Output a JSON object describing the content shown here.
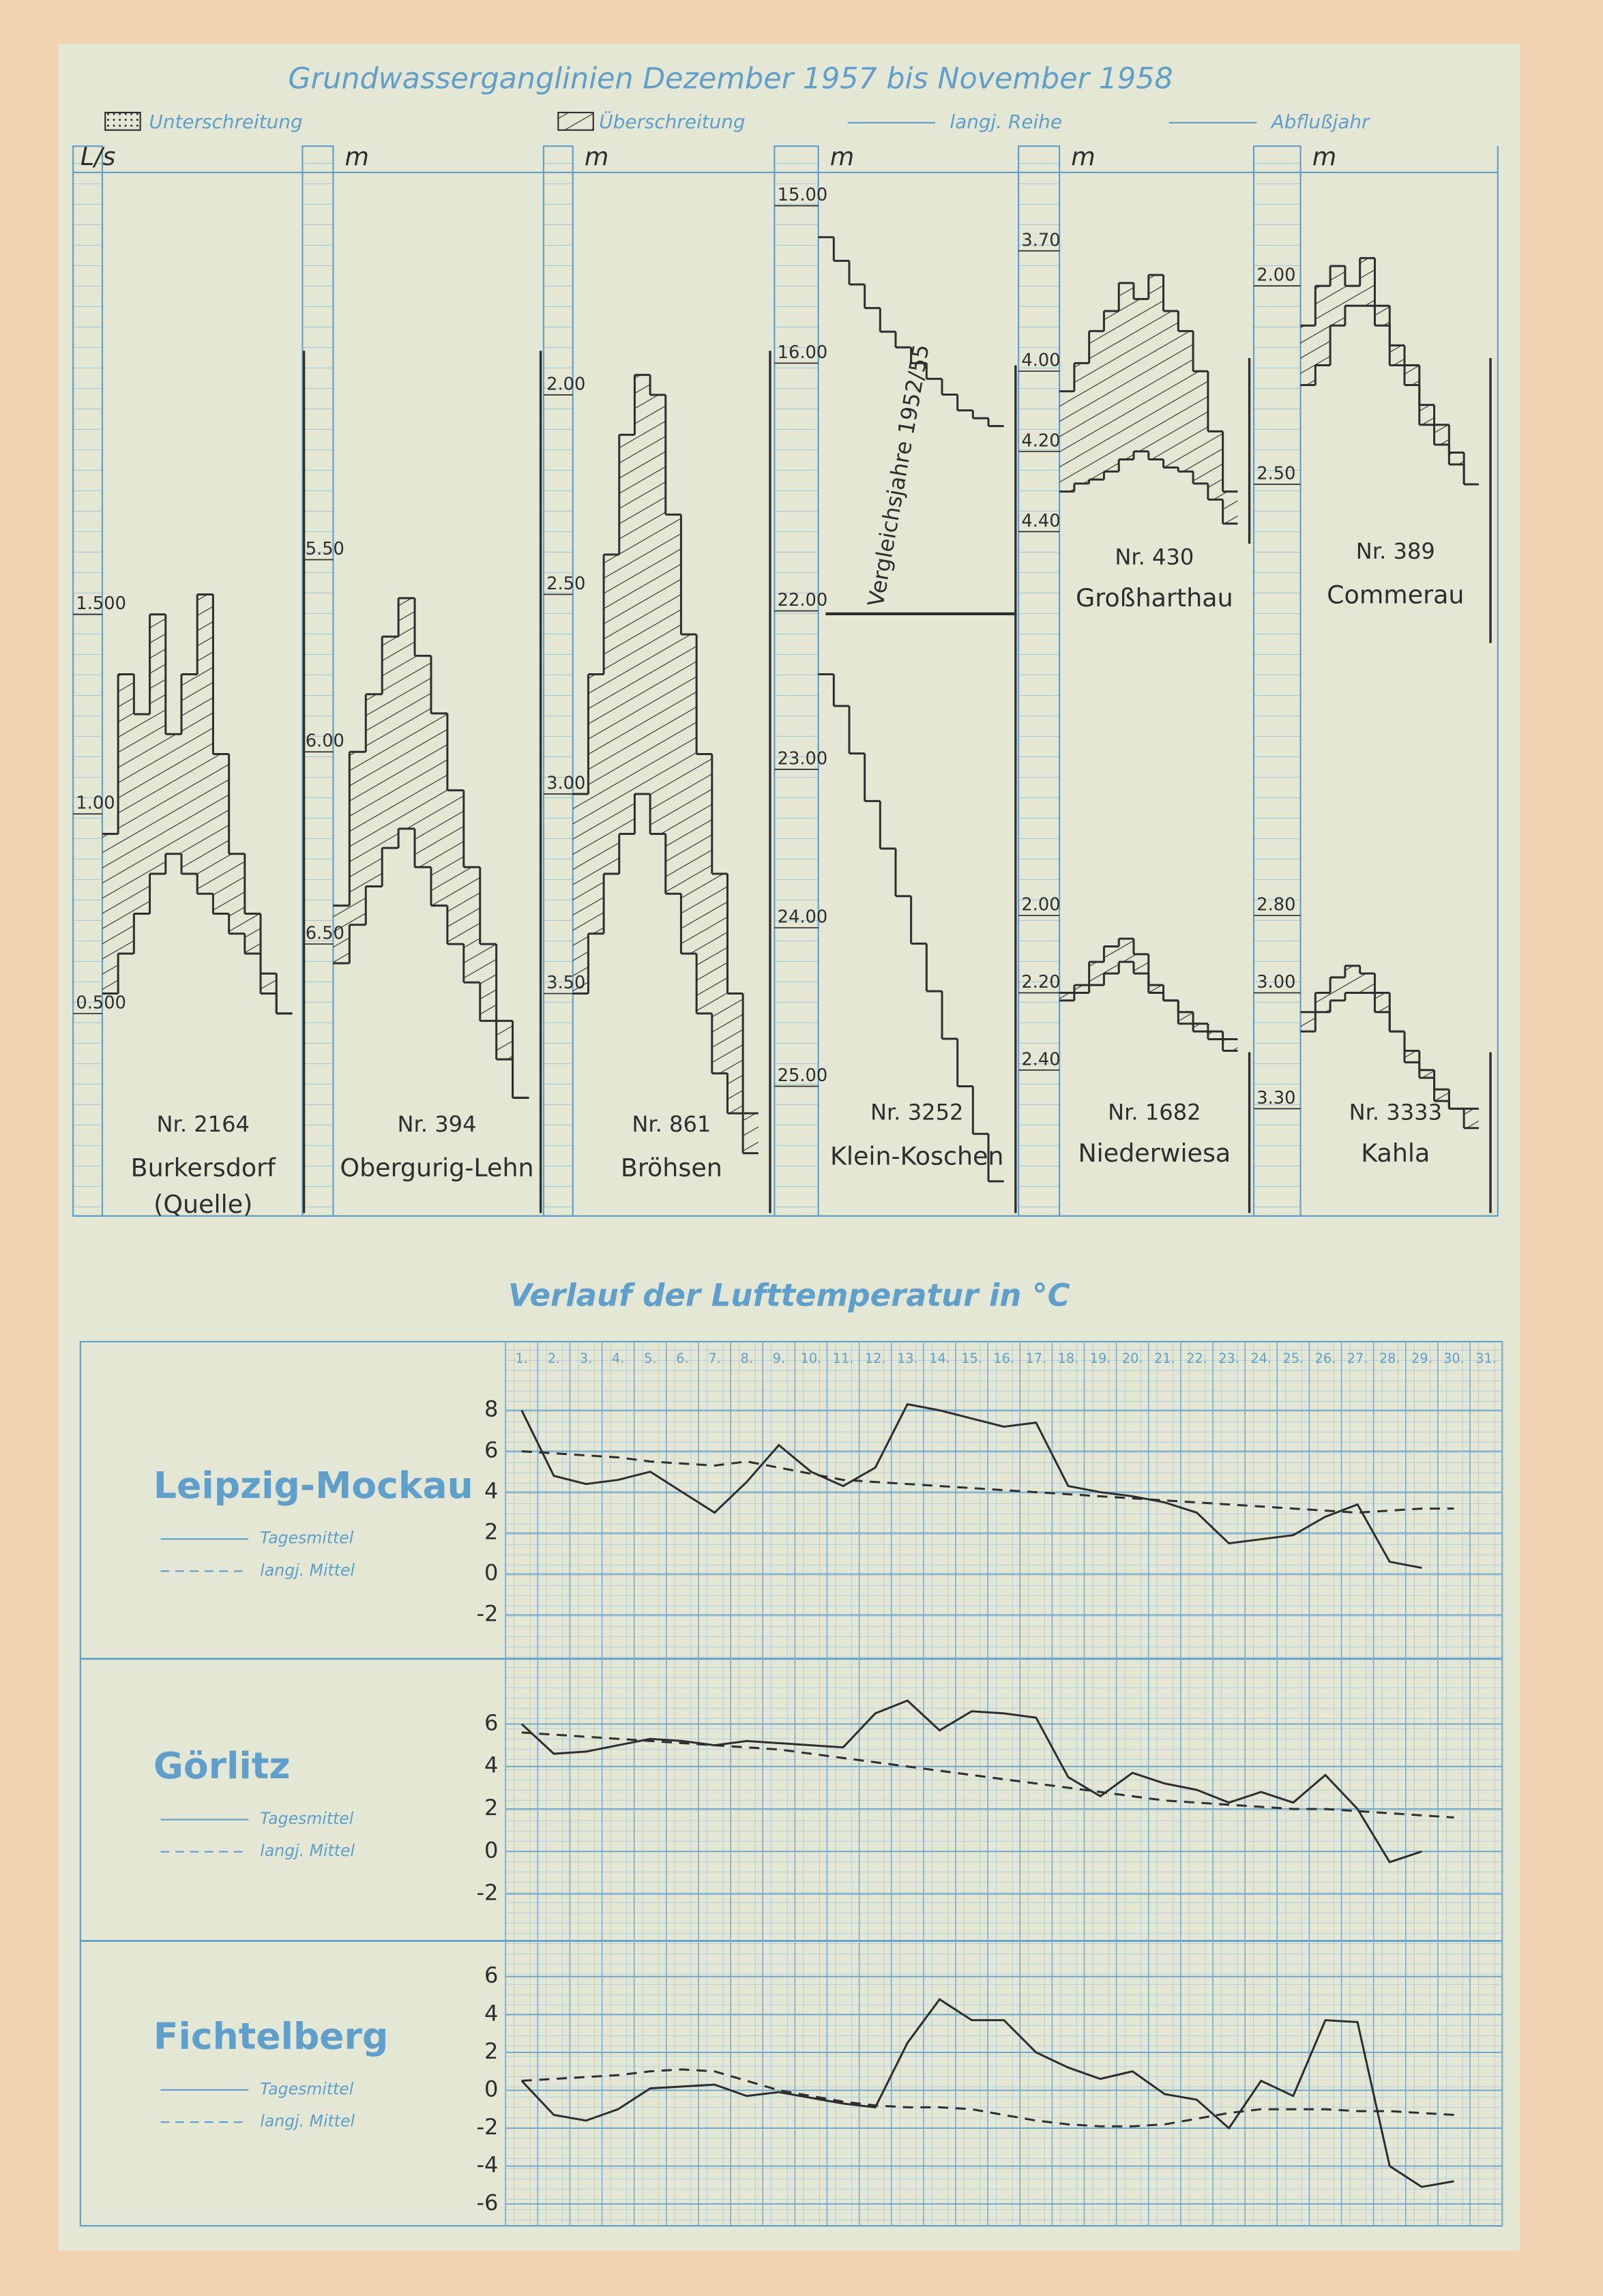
{
  "header": {
    "title": "Grundwasserganglinien Dezember 1957 bis November 1958",
    "legend": [
      "Unterschreitung",
      "Überschreitung",
      "langj. Reihe",
      "Abflußjahr"
    ]
  },
  "section_title": "Verlauf der Lufttemperatur in °C",
  "chart_data": [
    {
      "type": "step",
      "number": "Nr. 2164",
      "name": "Burkersdorf",
      "subtitle": "(Quelle)",
      "unit": "L/s",
      "inverted": false,
      "axes": [
        {
          "ylim": [
            0,
            2.6
          ],
          "yticks": [
            {
              "value": 0.5,
              "label": "0.500"
            },
            {
              "value": 1.0,
              "label": "1.00"
            },
            {
              "value": 1.5,
              "label": "1.500"
            }
          ],
          "series": [
            {
              "name": "Abflußjahr",
              "values": [
                0.95,
                1.35,
                1.25,
                1.5,
                1.2,
                1.35,
                1.55,
                1.15,
                0.9,
                0.75,
                0.6,
                0.5
              ]
            },
            {
              "name": "langj. Reihe",
              "values": [
                0.55,
                0.65,
                0.75,
                0.85,
                0.9,
                0.85,
                0.8,
                0.75,
                0.7,
                0.65,
                0.55,
                0.5
              ]
            }
          ]
        }
      ]
    },
    {
      "type": "step",
      "number": "Nr. 394",
      "name": "Obergurig-Lehn",
      "unit": "m",
      "inverted": true,
      "axes": [
        {
          "ylim": [
            4.5,
            7.2
          ],
          "yticks": [
            {
              "value": 5.5,
              "label": "5.50"
            },
            {
              "value": 6.0,
              "label": "6.00"
            },
            {
              "value": 6.5,
              "label": "6.50"
            }
          ],
          "series": [
            {
              "name": "Abflußjahr",
              "values": [
                6.4,
                6.0,
                5.85,
                5.7,
                5.6,
                5.75,
                5.9,
                6.1,
                6.3,
                6.5,
                6.7,
                6.9
              ]
            },
            {
              "name": "langj. Reihe",
              "values": [
                6.55,
                6.45,
                6.35,
                6.25,
                6.2,
                6.3,
                6.4,
                6.5,
                6.6,
                6.7,
                6.8,
                6.9
              ]
            }
          ]
        }
      ]
    },
    {
      "type": "step",
      "number": "Nr. 861",
      "name": "Bröhsen",
      "unit": "m",
      "inverted": true,
      "axes": [
        {
          "ylim": [
            1.45,
            4.05
          ],
          "yticks": [
            {
              "value": 2.0,
              "label": "2.00"
            },
            {
              "value": 2.5,
              "label": "2.50"
            },
            {
              "value": 3.0,
              "label": "3.00"
            },
            {
              "value": 3.5,
              "label": "3.50"
            }
          ],
          "series": [
            {
              "name": "Abflußjahr",
              "values": [
                3.0,
                2.7,
                2.4,
                2.1,
                1.95,
                2.0,
                2.3,
                2.6,
                2.9,
                3.2,
                3.5,
                3.8
              ]
            },
            {
              "name": "langj. Reihe",
              "values": [
                3.5,
                3.35,
                3.2,
                3.1,
                3.0,
                3.1,
                3.25,
                3.4,
                3.55,
                3.7,
                3.8,
                3.9
              ]
            }
          ]
        }
      ]
    },
    {
      "type": "step",
      "number": "Nr. 3252",
      "name": "Klein-Koschen",
      "note": "Vergleichsjahre 1952/55",
      "unit": "m",
      "inverted": true,
      "axes": [
        {
          "ylim": [
            14.9,
            17.5
          ],
          "yticks": [
            {
              "value": 15,
              "label": "15.00"
            },
            {
              "value": 16,
              "label": "16.00"
            }
          ],
          "series": [
            {
              "name": "langj. Reihe",
              "values": [
                15.2,
                15.35,
                15.5,
                15.65,
                15.8,
                15.9,
                16.0,
                16.1,
                16.2,
                16.3,
                16.35,
                16.4
              ]
            }
          ]
        },
        {
          "ylim": [
            22.0,
            25.8
          ],
          "yticks": [
            {
              "value": 22,
              "label": "22.00"
            },
            {
              "value": 23,
              "label": "23.00"
            },
            {
              "value": 24,
              "label": "24.00"
            },
            {
              "value": 25,
              "label": "25.00"
            }
          ],
          "series": [
            {
              "name": "Abflußjahr",
              "values": [
                22.4,
                22.6,
                22.9,
                23.2,
                23.5,
                23.8,
                24.1,
                24.4,
                24.7,
                25.0,
                25.3,
                25.6
              ]
            }
          ]
        }
      ]
    },
    {
      "type": "step",
      "number": "Nr. 430",
      "name": "Großharthau",
      "unit": "m",
      "inverted": true,
      "axes": [
        {
          "ylim": [
            3.53,
            4.43
          ],
          "yticks": [
            {
              "value": 3.7,
              "label": "3.70"
            },
            {
              "value": 4.0,
              "label": "4.00"
            },
            {
              "value": 4.2,
              "label": "4.20"
            },
            {
              "value": 4.4,
              "label": "4.40"
            }
          ],
          "series": [
            {
              "name": "Abflußjahr",
              "values": [
                4.05,
                3.98,
                3.9,
                3.85,
                3.78,
                3.82,
                3.76,
                3.85,
                3.9,
                4.0,
                4.15,
                4.3
              ]
            },
            {
              "name": "langj. Reihe",
              "values": [
                4.3,
                4.28,
                4.27,
                4.25,
                4.22,
                4.2,
                4.22,
                4.24,
                4.25,
                4.28,
                4.32,
                4.38
              ]
            }
          ]
        }
      ]
    },
    {
      "type": "step",
      "number": "Nr. 1682",
      "name": "Niederwiesa",
      "inverted": true,
      "axes": [
        {
          "ylim": [
            1.9,
            2.77
          ],
          "yticks": [
            {
              "value": 2.0,
              "label": "2.00"
            },
            {
              "value": 2.2,
              "label": "2.20"
            },
            {
              "value": 2.4,
              "label": "2.40"
            }
          ],
          "series": [
            {
              "name": "Abflußjahr",
              "values": [
                2.22,
                2.18,
                2.12,
                2.08,
                2.06,
                2.1,
                2.2,
                2.22,
                2.28,
                2.3,
                2.32,
                2.35
              ]
            },
            {
              "name": "langj. Reihe",
              "values": [
                2.2,
                2.2,
                2.18,
                2.15,
                2.12,
                2.15,
                2.18,
                2.22,
                2.25,
                2.28,
                2.3,
                2.32
              ]
            }
          ]
        }
      ]
    },
    {
      "type": "step",
      "number": "Nr. 389",
      "name": "Commerau",
      "unit": "m",
      "inverted": true,
      "axes": [
        {
          "ylim": [
            1.74,
            2.9
          ],
          "yticks": [
            {
              "value": 2.0,
              "label": "2.00"
            },
            {
              "value": 2.5,
              "label": "2.50"
            }
          ],
          "series": [
            {
              "name": "Abflußjahr",
              "values": [
                2.1,
                2.0,
                1.95,
                2.0,
                1.93,
                2.05,
                2.15,
                2.2,
                2.35,
                2.4,
                2.45,
                2.5
              ]
            },
            {
              "name": "langj. Reihe",
              "values": [
                2.25,
                2.2,
                2.1,
                2.05,
                2.05,
                2.1,
                2.2,
                2.25,
                2.3,
                2.35,
                2.42,
                2.5
              ]
            }
          ]
        }
      ]
    },
    {
      "type": "step",
      "number": "Nr. 3333",
      "name": "Kahla",
      "inverted": true,
      "axes": [
        {
          "ylim": [
            2.7,
            3.57
          ],
          "yticks": [
            {
              "value": 2.8,
              "label": "2.80"
            },
            {
              "value": 3.0,
              "label": "3.00"
            },
            {
              "value": 3.3,
              "label": "3.30"
            }
          ],
          "series": [
            {
              "name": "Abflußjahr",
              "values": [
                3.1,
                3.0,
                2.96,
                2.93,
                2.95,
                3.0,
                3.1,
                3.15,
                3.2,
                3.25,
                3.3,
                3.3
              ]
            },
            {
              "name": "langj. Reihe",
              "values": [
                3.05,
                3.05,
                3.02,
                3.0,
                3.0,
                3.05,
                3.1,
                3.18,
                3.22,
                3.28,
                3.3,
                3.35
              ]
            }
          ]
        }
      ]
    },
    {
      "type": "line",
      "name": "Leipzig-Mockau",
      "categories": [
        "1.",
        "2.",
        "3.",
        "4.",
        "5.",
        "6.",
        "7.",
        "8.",
        "9.",
        "10.",
        "11.",
        "12.",
        "13.",
        "14.",
        "15.",
        "16.",
        "17.",
        "18.",
        "19.",
        "20.",
        "21.",
        "22.",
        "23.",
        "24.",
        "25.",
        "26.",
        "27.",
        "28.",
        "29.",
        "30.",
        "31."
      ],
      "ylim": [
        -4,
        10
      ],
      "yticks": [
        -2,
        0,
        2,
        4,
        6,
        8
      ],
      "series": [
        {
          "name": "Tagesmittel",
          "dash": false,
          "values": [
            8.0,
            4.8,
            4.4,
            4.6,
            5.0,
            4.0,
            3.0,
            4.5,
            6.3,
            5.0,
            4.3,
            5.2,
            8.3,
            8.0,
            7.6,
            7.2,
            7.4,
            4.3,
            4.0,
            3.8,
            3.5,
            3.0,
            1.5,
            1.7,
            1.9,
            2.8,
            3.4,
            0.6,
            0.3,
            null,
            null
          ]
        },
        {
          "name": "langj. Mittel",
          "dash": true,
          "values": [
            6.0,
            5.9,
            5.8,
            5.7,
            5.5,
            5.4,
            5.3,
            5.5,
            5.2,
            4.9,
            4.6,
            4.5,
            4.4,
            4.3,
            4.2,
            4.1,
            4.0,
            3.9,
            3.8,
            3.7,
            3.6,
            3.5,
            3.4,
            3.3,
            3.2,
            3.1,
            3.0,
            3.1,
            3.2,
            3.2,
            null
          ]
        }
      ]
    },
    {
      "type": "line",
      "name": "Görlitz",
      "ylim": [
        -4,
        9
      ],
      "yticks": [
        -2,
        0,
        2,
        4,
        6
      ],
      "series": [
        {
          "name": "Tagesmittel",
          "dash": false,
          "values": [
            6.0,
            4.6,
            4.7,
            5.0,
            5.3,
            5.2,
            5.0,
            5.2,
            5.1,
            5.0,
            4.9,
            6.5,
            7.1,
            5.7,
            6.6,
            6.5,
            6.3,
            3.5,
            2.6,
            3.7,
            3.2,
            2.9,
            2.3,
            2.8,
            2.3,
            3.6,
            2.0,
            -0.5,
            0.0,
            null,
            null
          ]
        },
        {
          "name": "langj. Mittel",
          "dash": true,
          "values": [
            5.6,
            5.5,
            5.4,
            5.3,
            5.2,
            5.1,
            5.0,
            4.9,
            4.8,
            4.6,
            4.4,
            4.2,
            4.0,
            3.8,
            3.6,
            3.4,
            3.2,
            3.0,
            2.8,
            2.6,
            2.4,
            2.3,
            2.2,
            2.1,
            2.0,
            2.0,
            1.9,
            1.8,
            1.7,
            1.6,
            null
          ]
        }
      ]
    },
    {
      "type": "line",
      "name": "Fichtelberg",
      "ylim": [
        -7,
        7.5
      ],
      "yticks": [
        -6,
        -4,
        -2,
        0,
        2,
        4,
        6
      ],
      "series": [
        {
          "name": "Tagesmittel",
          "dash": false,
          "values": [
            0.5,
            -1.3,
            -1.6,
            -1.0,
            0.1,
            0.2,
            0.3,
            -0.3,
            -0.1,
            -0.4,
            -0.7,
            -0.9,
            2.5,
            4.8,
            3.7,
            3.7,
            2.0,
            1.2,
            0.6,
            1.0,
            -0.2,
            -0.5,
            -2.0,
            0.5,
            -0.3,
            3.7,
            3.6,
            -4.0,
            -5.1,
            -4.8,
            null
          ]
        },
        {
          "name": "langj. Mittel",
          "dash": true,
          "values": [
            0.5,
            0.6,
            0.7,
            0.8,
            1.0,
            1.1,
            1.0,
            0.5,
            0.0,
            -0.3,
            -0.6,
            -0.8,
            -0.9,
            -0.9,
            -1.0,
            -1.3,
            -1.6,
            -1.8,
            -1.9,
            -1.9,
            -1.8,
            -1.5,
            -1.2,
            -1.0,
            -1.0,
            -1.0,
            -1.1,
            -1.1,
            -1.2,
            -1.3,
            null
          ]
        }
      ]
    }
  ]
}
